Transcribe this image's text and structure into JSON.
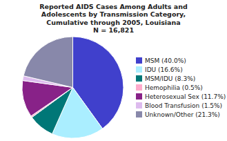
{
  "chart_data": {
    "type": "pie",
    "title": "Reported AIDS Cases Among Adults and\nAdolescents by Transmission Category,\nCumulative through 2005, Louisiana\nN = 16,821",
    "categories": [
      "MSM (40.0%)",
      "IDU (16.6%)",
      "MSM/IDU (8.3%)",
      "Hemophilia (0.5%)",
      "Heterosexual Sex (11.7%)",
      "Blood Transfusion (1.5%)",
      "Unknown/Other (21.3%)"
    ],
    "values": [
      40.0,
      16.6,
      8.3,
      0.5,
      11.7,
      1.5,
      21.3
    ],
    "colors": [
      "#4040cc",
      "#aaeeff",
      "#007777",
      "#ffaacc",
      "#882288",
      "#ddbbee",
      "#8888aa"
    ],
    "legend": "right"
  }
}
